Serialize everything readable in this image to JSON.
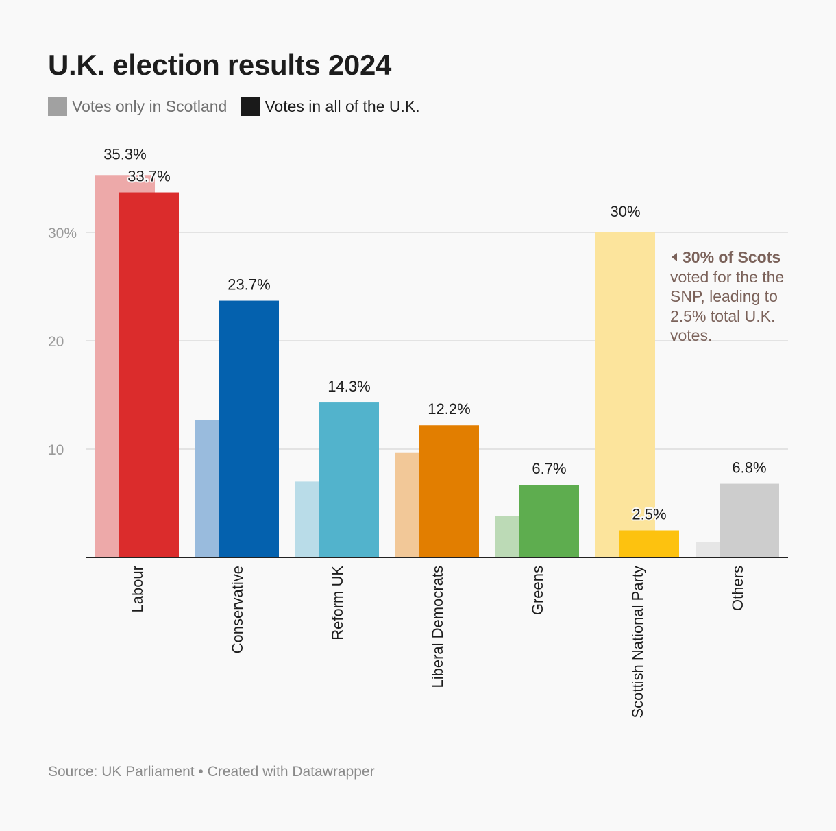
{
  "chart_data": {
    "type": "bar",
    "title": "U.K. election results 2024",
    "categories": [
      "Labour",
      "Conservative",
      "Reform UK",
      "Liberal Democrats",
      "Greens",
      "Scottish National Party",
      "Others"
    ],
    "series": [
      {
        "name": "Votes only in Scotland",
        "values": [
          35.3,
          12.7,
          7.0,
          9.7,
          3.8,
          30.0,
          1.4
        ],
        "labels": [
          "35.3%",
          null,
          null,
          null,
          null,
          "30%",
          null
        ],
        "colors": [
          "#eda9a9",
          "#99bbdd",
          "#b9dce8",
          "#f2c898",
          "#bcdab6",
          "#fce49c",
          "#e6e6e6"
        ]
      },
      {
        "name": "Votes in all of the U.K.",
        "values": [
          33.7,
          23.7,
          14.3,
          12.2,
          6.7,
          2.5,
          6.8
        ],
        "labels": [
          "33.7%",
          "23.7%",
          "14.3%",
          "12.2%",
          "6.7%",
          "2.5%",
          "6.8%"
        ],
        "colors": [
          "#db2c2c",
          "#0461ae",
          "#52b3cc",
          "#e27e00",
          "#5ead4f",
          "#fdc20f",
          "#cdcdcd"
        ]
      }
    ],
    "xlabel": "",
    "ylabel": "",
    "ylim": [
      0,
      38
    ],
    "yticks": [
      10,
      20,
      30
    ],
    "ytick_labels": [
      "10",
      "20",
      "30%"
    ],
    "grid": true,
    "legend_position": "top-left"
  },
  "legend": {
    "item1_label": "Votes only in Scotland",
    "item1_color": "#a1a1a1",
    "item2_label": "Votes in all of the U.K.",
    "item2_color": "#1a1a1a"
  },
  "annotation": {
    "head": "30% of Scots",
    "body": "voted for the the SNP, leading to 2.5% total U.K. votes."
  },
  "source": "Source: UK Parliament • Created with Datawrapper"
}
